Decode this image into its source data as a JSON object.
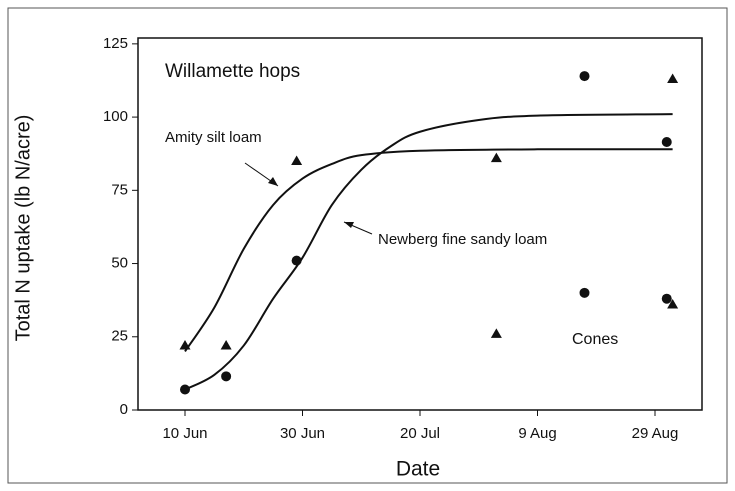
{
  "chart_data": {
    "type": "scatter",
    "title": "Willamette hops",
    "xlabel": "Date",
    "ylabel": "Total N uptake (lb N/acre)",
    "xlim": [
      153,
      249
    ],
    "xticks": [
      {
        "value": 161,
        "label": "10 Jun"
      },
      {
        "value": 181,
        "label": "30 Jun"
      },
      {
        "value": 201,
        "label": "20 Jul"
      },
      {
        "value": 221,
        "label": "9 Aug"
      },
      {
        "value": 241,
        "label": "29 Aug"
      }
    ],
    "ylim": [
      0,
      127
    ],
    "yticks": [
      0,
      25,
      50,
      75,
      100,
      125
    ],
    "color": "#111111",
    "series": [
      {
        "name": "Amity silt loam",
        "marker": "triangle",
        "x": [
          161,
          168,
          180,
          214,
          244
        ],
        "values": [
          22,
          22,
          85,
          86,
          113
        ],
        "fit_x": [
          161,
          166,
          171,
          176,
          181,
          186,
          191,
          201,
          221,
          244
        ],
        "fit_values": [
          20,
          35,
          55,
          70,
          79,
          84,
          87,
          88.5,
          89,
          89
        ]
      },
      {
        "name": "Newberg fine sandy loam",
        "marker": "circle",
        "x": [
          161,
          168,
          180,
          229,
          243
        ],
        "values": [
          7,
          11.5,
          51,
          114,
          91.5
        ],
        "fit_x": [
          161,
          166,
          171,
          176,
          181,
          186,
          191,
          196,
          201,
          211,
          221,
          244
        ],
        "fit_values": [
          7,
          12,
          22,
          38,
          52,
          70,
          82,
          90,
          95,
          99,
          100.5,
          101
        ]
      }
    ],
    "cones": {
      "label": "Cones",
      "series": [
        {
          "marker": "triangle",
          "x": [
            214,
            244
          ],
          "values": [
            26,
            36
          ]
        },
        {
          "marker": "circle",
          "x": [
            229,
            243
          ],
          "values": [
            40,
            38
          ]
        }
      ]
    }
  }
}
